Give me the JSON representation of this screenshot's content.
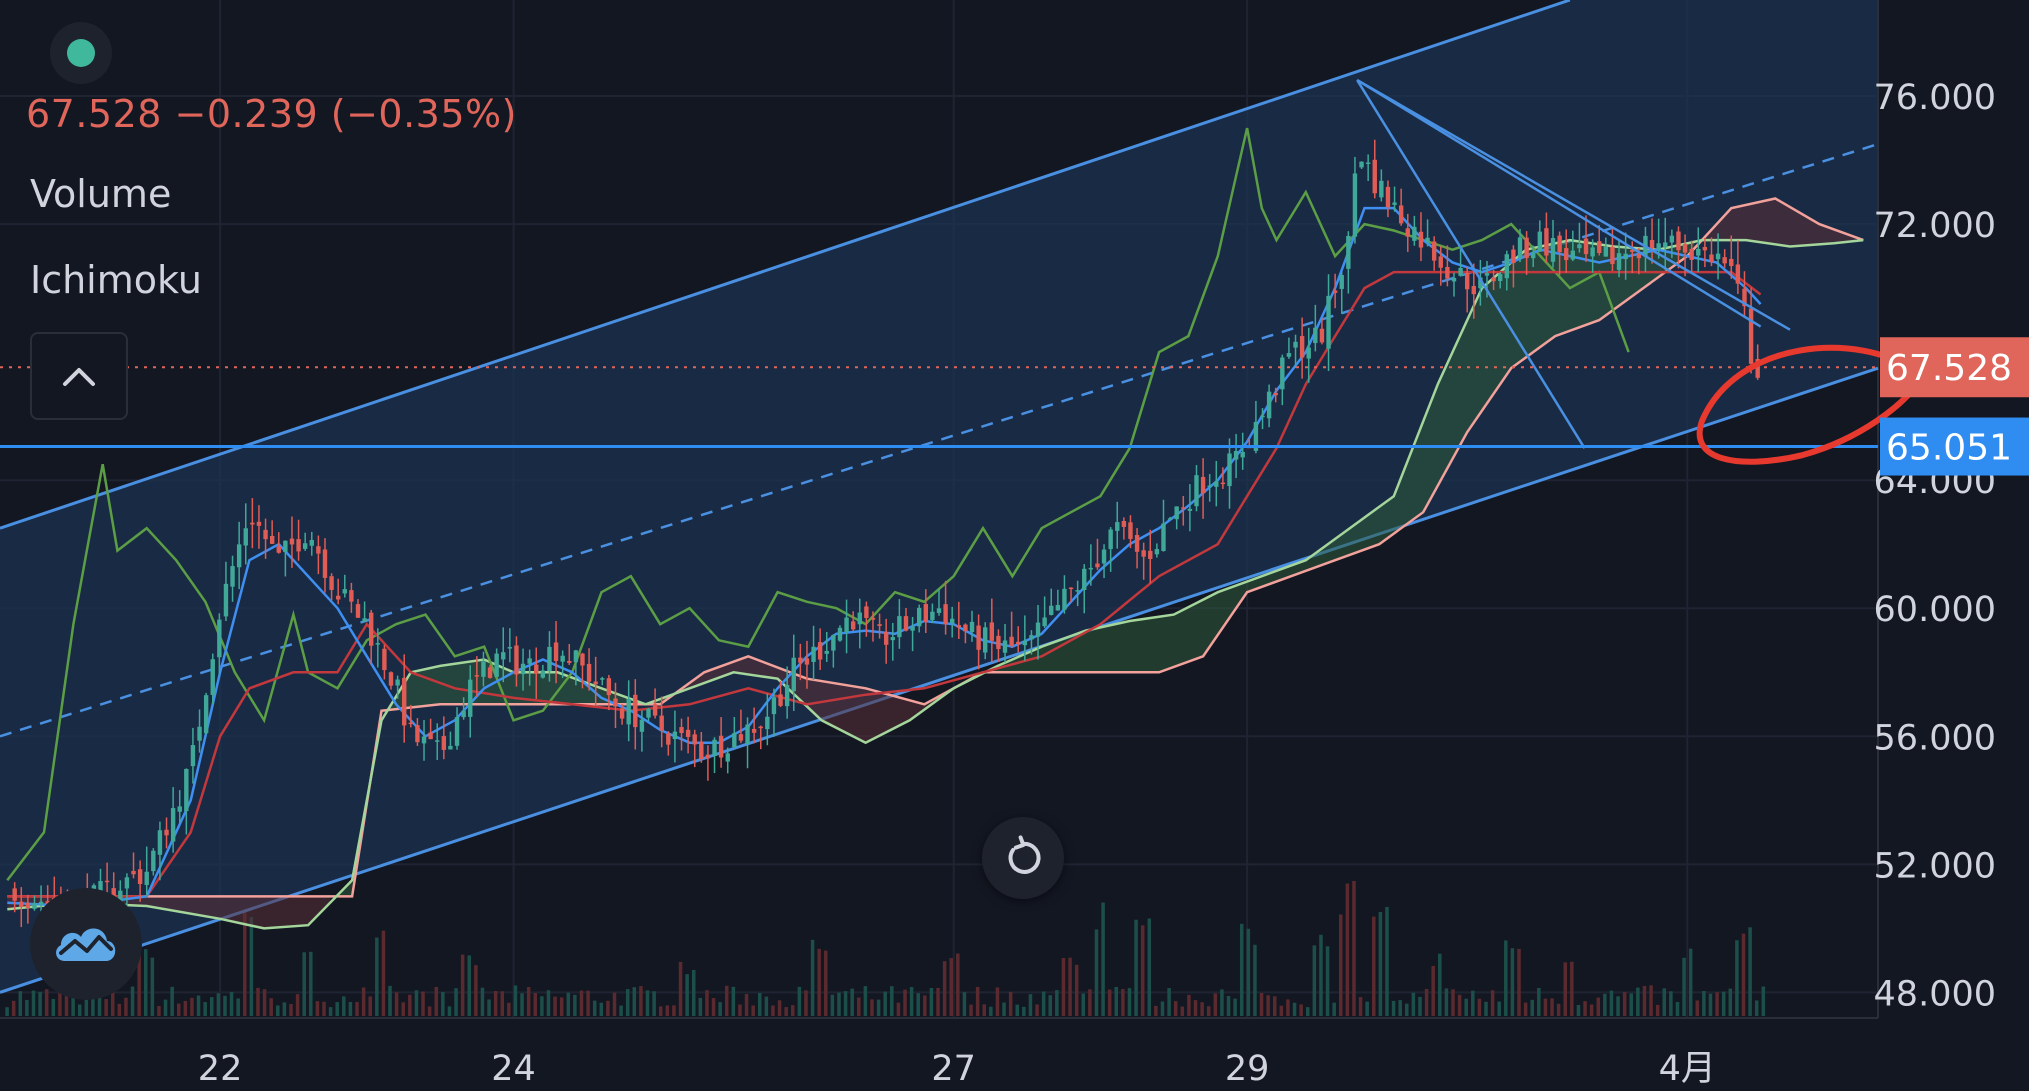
{
  "legend": {
    "price_change": "67.528  −0.239 (−0.35%)",
    "indicator_volume": "Volume",
    "indicator_ichimoku": "Ichimoku"
  },
  "icons": {
    "symbol_dot": "status-dot-icon",
    "collapse": "chevron-up-icon",
    "replay": "replay-icon",
    "logo": "tradingview-cloud-icon"
  },
  "colors": {
    "background": "#131722",
    "channel_line": "#4a90e2",
    "channel_fill": "#1c3350",
    "conversion_line": "#3f8ff2",
    "base_line": "#c2383c",
    "lagging_span": "#5c9e45",
    "leading_span_a": "#a4d69b",
    "leading_span_b": "#f2a19b",
    "candle_up": "#3fa898",
    "candle_down": "#e05c54",
    "current_price": "#e0655a",
    "level_label": "#2f8cf0",
    "annotation": "#e8392f"
  },
  "chart_data": {
    "type": "candlestick",
    "symbol_dot_present": true,
    "x_axis": {
      "ticks": [
        "22",
        "24",
        "27",
        "29",
        "4月"
      ],
      "tick_positions": [
        22,
        24,
        27,
        29,
        32
      ]
    },
    "y_axis": {
      "range": [
        47.2,
        79.0
      ],
      "ticks": [
        "76.000",
        "72.000",
        "64.000",
        "60.000",
        "56.000",
        "52.000",
        "48.000"
      ],
      "tick_values": [
        76,
        72,
        64,
        60,
        56,
        52,
        48
      ]
    },
    "x_range": [
      20.5,
      33.3
    ],
    "current_price": {
      "value": 67.528,
      "label": "67.528",
      "line_style": "dotted"
    },
    "horizontal_level": {
      "value": 65.051,
      "label": "65.051"
    },
    "price_path": [
      [
        20.55,
        51.2
      ],
      [
        21.0,
        50.6
      ],
      [
        21.5,
        51.8
      ],
      [
        21.8,
        55.0
      ],
      [
        22.0,
        60.0
      ],
      [
        22.2,
        63.0
      ],
      [
        22.4,
        61.5
      ],
      [
        22.6,
        62.5
      ],
      [
        22.8,
        60.5
      ],
      [
        23.0,
        59.5
      ],
      [
        23.2,
        57.5
      ],
      [
        23.3,
        56.0
      ],
      [
        23.5,
        55.4
      ],
      [
        23.7,
        57.5
      ],
      [
        23.9,
        58.5
      ],
      [
        24.1,
        58.2
      ],
      [
        24.3,
        58.8
      ],
      [
        24.5,
        58.0
      ],
      [
        24.7,
        57.0
      ],
      [
        24.9,
        56.5
      ],
      [
        25.1,
        56.0
      ],
      [
        25.3,
        55.5
      ],
      [
        25.5,
        56.0
      ],
      [
        25.7,
        56.5
      ],
      [
        25.9,
        58.0
      ],
      [
        26.1,
        58.8
      ],
      [
        26.3,
        59.8
      ],
      [
        26.5,
        59.0
      ],
      [
        26.7,
        59.5
      ],
      [
        26.9,
        60.0
      ],
      [
        27.1,
        59.2
      ],
      [
        27.3,
        58.8
      ],
      [
        27.5,
        58.7
      ],
      [
        27.7,
        60.0
      ],
      [
        27.9,
        61.0
      ],
      [
        28.1,
        62.5
      ],
      [
        28.3,
        61.5
      ],
      [
        28.5,
        63.0
      ],
      [
        28.7,
        64.0
      ],
      [
        28.9,
        64.5
      ],
      [
        29.1,
        66.0
      ],
      [
        29.3,
        68.0
      ],
      [
        29.5,
        68.5
      ],
      [
        29.7,
        71.5
      ],
      [
        29.75,
        74.5
      ],
      [
        29.85,
        73.5
      ],
      [
        30.0,
        72.5
      ],
      [
        30.2,
        71.5
      ],
      [
        30.4,
        70.5
      ],
      [
        30.6,
        70.0
      ],
      [
        30.8,
        71.0
      ],
      [
        31.0,
        71.5
      ],
      [
        31.2,
        71.0
      ],
      [
        31.4,
        70.8
      ],
      [
        31.6,
        71.2
      ],
      [
        31.8,
        71.5
      ],
      [
        32.0,
        71.2
      ],
      [
        32.2,
        71.0
      ],
      [
        32.3,
        70.5
      ],
      [
        32.4,
        69.0
      ],
      [
        32.45,
        67.5
      ],
      [
        32.5,
        67.528
      ]
    ],
    "lagging_span": [
      [
        20.55,
        51.5
      ],
      [
        20.8,
        53.0
      ],
      [
        21.0,
        59.5
      ],
      [
        21.1,
        62.0
      ],
      [
        21.2,
        64.5
      ],
      [
        21.3,
        61.8
      ],
      [
        21.5,
        62.5
      ],
      [
        21.7,
        61.5
      ],
      [
        21.9,
        60.2
      ],
      [
        22.1,
        58.0
      ],
      [
        22.3,
        56.5
      ],
      [
        22.5,
        59.8
      ],
      [
        22.6,
        58.0
      ],
      [
        22.8,
        57.5
      ],
      [
        23.0,
        59.0
      ],
      [
        23.2,
        59.5
      ],
      [
        23.4,
        59.8
      ],
      [
        23.6,
        58.5
      ],
      [
        23.8,
        58.8
      ],
      [
        24.0,
        56.5
      ],
      [
        24.2,
        56.8
      ],
      [
        24.4,
        58.0
      ],
      [
        24.6,
        60.5
      ],
      [
        24.8,
        61.0
      ],
      [
        25.0,
        59.5
      ],
      [
        25.2,
        60.0
      ],
      [
        25.4,
        59.0
      ],
      [
        25.6,
        58.8
      ],
      [
        25.8,
        60.5
      ],
      [
        26.0,
        60.2
      ],
      [
        26.2,
        60.0
      ],
      [
        26.4,
        59.5
      ],
      [
        26.6,
        60.5
      ],
      [
        26.8,
        60.2
      ],
      [
        27.0,
        61.0
      ],
      [
        27.2,
        62.5
      ],
      [
        27.4,
        61.0
      ],
      [
        27.6,
        62.5
      ],
      [
        27.8,
        63.0
      ],
      [
        28.0,
        63.5
      ],
      [
        28.2,
        65.0
      ],
      [
        28.4,
        68.0
      ],
      [
        28.6,
        68.5
      ],
      [
        28.8,
        71.0
      ],
      [
        28.9,
        73.0
      ],
      [
        29.0,
        75.0
      ],
      [
        29.1,
        72.5
      ],
      [
        29.2,
        71.5
      ],
      [
        29.4,
        73.0
      ],
      [
        29.6,
        71.0
      ],
      [
        29.8,
        72.0
      ],
      [
        30.0,
        71.8
      ],
      [
        30.2,
        71.5
      ],
      [
        30.4,
        71.2
      ],
      [
        30.6,
        71.5
      ],
      [
        30.8,
        72.0
      ],
      [
        31.0,
        71.0
      ],
      [
        31.2,
        70.0
      ],
      [
        31.4,
        70.5
      ],
      [
        31.6,
        68.0
      ]
    ],
    "leading_span_a": [
      [
        20.55,
        50.6
      ],
      [
        21.0,
        50.8
      ],
      [
        21.5,
        50.7
      ],
      [
        22.0,
        50.3
      ],
      [
        22.3,
        50.0
      ],
      [
        22.6,
        50.1
      ],
      [
        22.9,
        51.5
      ],
      [
        23.1,
        56.5
      ],
      [
        23.3,
        58.0
      ],
      [
        23.5,
        58.2
      ],
      [
        23.8,
        58.4
      ],
      [
        24.0,
        58.0
      ],
      [
        24.3,
        58.0
      ],
      [
        24.6,
        57.5
      ],
      [
        24.9,
        57.0
      ],
      [
        25.2,
        57.5
      ],
      [
        25.5,
        58.0
      ],
      [
        25.8,
        57.8
      ],
      [
        26.1,
        56.5
      ],
      [
        26.4,
        55.8
      ],
      [
        26.7,
        56.5
      ],
      [
        27.0,
        57.5
      ],
      [
        27.3,
        58.2
      ],
      [
        27.6,
        58.8
      ],
      [
        27.9,
        59.3
      ],
      [
        28.2,
        59.6
      ],
      [
        28.5,
        59.8
      ],
      [
        28.8,
        60.5
      ],
      [
        29.1,
        61.0
      ],
      [
        29.4,
        61.5
      ],
      [
        29.7,
        62.5
      ],
      [
        30.0,
        63.5
      ],
      [
        30.3,
        67.0
      ],
      [
        30.6,
        70.0
      ],
      [
        30.9,
        71.2
      ],
      [
        31.2,
        71.5
      ],
      [
        31.5,
        71.3
      ],
      [
        31.8,
        71.2
      ],
      [
        32.1,
        71.5
      ],
      [
        32.4,
        71.5
      ],
      [
        32.7,
        71.3
      ],
      [
        33.0,
        71.4
      ],
      [
        33.2,
        71.5
      ]
    ],
    "leading_span_b": [
      [
        20.55,
        51.0
      ],
      [
        21.0,
        51.0
      ],
      [
        21.5,
        51.0
      ],
      [
        22.0,
        51.0
      ],
      [
        22.5,
        51.0
      ],
      [
        22.9,
        51.0
      ],
      [
        23.1,
        56.8
      ],
      [
        23.5,
        57.0
      ],
      [
        24.0,
        57.0
      ],
      [
        24.5,
        57.0
      ],
      [
        25.0,
        57.0
      ],
      [
        25.3,
        58.0
      ],
      [
        25.6,
        58.5
      ],
      [
        26.0,
        57.8
      ],
      [
        26.4,
        57.5
      ],
      [
        26.8,
        57.0
      ],
      [
        27.2,
        58.0
      ],
      [
        27.6,
        58.0
      ],
      [
        28.0,
        58.0
      ],
      [
        28.4,
        58.0
      ],
      [
        28.7,
        58.5
      ],
      [
        29.0,
        60.5
      ],
      [
        29.3,
        61.0
      ],
      [
        29.6,
        61.5
      ],
      [
        29.9,
        62.0
      ],
      [
        30.2,
        63.0
      ],
      [
        30.5,
        65.5
      ],
      [
        30.8,
        67.5
      ],
      [
        31.1,
        68.5
      ],
      [
        31.4,
        69.0
      ],
      [
        31.7,
        70.0
      ],
      [
        32.0,
        71.0
      ],
      [
        32.3,
        72.5
      ],
      [
        32.6,
        72.8
      ],
      [
        32.9,
        72.0
      ],
      [
        33.2,
        71.5
      ]
    ],
    "conversion_line": [
      [
        20.55,
        50.8
      ],
      [
        21.0,
        50.7
      ],
      [
        21.5,
        51.0
      ],
      [
        21.8,
        54.0
      ],
      [
        22.0,
        58.0
      ],
      [
        22.2,
        61.5
      ],
      [
        22.4,
        62.0
      ],
      [
        22.6,
        61.0
      ],
      [
        22.8,
        60.0
      ],
      [
        23.0,
        58.5
      ],
      [
        23.2,
        57.0
      ],
      [
        23.4,
        56.0
      ],
      [
        23.6,
        56.5
      ],
      [
        23.8,
        57.5
      ],
      [
        24.0,
        58.0
      ],
      [
        24.2,
        58.4
      ],
      [
        24.4,
        58.0
      ],
      [
        24.6,
        57.2
      ],
      [
        24.8,
        56.8
      ],
      [
        25.0,
        56.2
      ],
      [
        25.2,
        55.8
      ],
      [
        25.4,
        55.8
      ],
      [
        25.6,
        56.3
      ],
      [
        25.8,
        57.5
      ],
      [
        26.0,
        58.5
      ],
      [
        26.2,
        59.2
      ],
      [
        26.4,
        59.3
      ],
      [
        26.6,
        59.2
      ],
      [
        26.8,
        59.6
      ],
      [
        27.0,
        59.5
      ],
      [
        27.2,
        59.0
      ],
      [
        27.4,
        58.8
      ],
      [
        27.6,
        59.2
      ],
      [
        27.8,
        60.2
      ],
      [
        28.0,
        61.2
      ],
      [
        28.2,
        62.0
      ],
      [
        28.4,
        62.5
      ],
      [
        28.6,
        63.2
      ],
      [
        28.8,
        64.0
      ],
      [
        29.0,
        65.2
      ],
      [
        29.2,
        66.8
      ],
      [
        29.4,
        68.0
      ],
      [
        29.6,
        70.0
      ],
      [
        29.8,
        72.5
      ],
      [
        30.0,
        72.5
      ],
      [
        30.2,
        71.5
      ],
      [
        30.4,
        70.8
      ],
      [
        30.6,
        70.5
      ],
      [
        30.8,
        70.8
      ],
      [
        31.0,
        71.2
      ],
      [
        31.2,
        71.0
      ],
      [
        31.4,
        70.8
      ],
      [
        31.6,
        71.0
      ],
      [
        31.8,
        71.2
      ],
      [
        32.0,
        71.0
      ],
      [
        32.2,
        70.8
      ],
      [
        32.4,
        70.0
      ],
      [
        32.5,
        69.5
      ]
    ],
    "base_line": [
      [
        20.55,
        51.0
      ],
      [
        21.0,
        51.0
      ],
      [
        21.5,
        51.0
      ],
      [
        21.8,
        53.0
      ],
      [
        22.0,
        56.0
      ],
      [
        22.2,
        57.5
      ],
      [
        22.5,
        58.0
      ],
      [
        22.8,
        58.0
      ],
      [
        23.0,
        59.5
      ],
      [
        23.3,
        58.0
      ],
      [
        23.6,
        57.5
      ],
      [
        24.0,
        57.2
      ],
      [
        24.4,
        57.0
      ],
      [
        24.8,
        56.8
      ],
      [
        25.2,
        57.0
      ],
      [
        25.6,
        57.5
      ],
      [
        26.0,
        57.0
      ],
      [
        26.4,
        57.3
      ],
      [
        26.8,
        57.5
      ],
      [
        27.2,
        58.0
      ],
      [
        27.6,
        58.5
      ],
      [
        28.0,
        59.5
      ],
      [
        28.4,
        61.0
      ],
      [
        28.8,
        62.0
      ],
      [
        29.0,
        63.5
      ],
      [
        29.2,
        65.0
      ],
      [
        29.4,
        67.0
      ],
      [
        29.6,
        68.5
      ],
      [
        29.8,
        70.0
      ],
      [
        30.0,
        70.5
      ],
      [
        30.4,
        70.5
      ],
      [
        30.8,
        70.5
      ],
      [
        31.2,
        70.5
      ],
      [
        31.6,
        70.5
      ],
      [
        32.0,
        70.5
      ],
      [
        32.3,
        70.5
      ],
      [
        32.5,
        69.8
      ]
    ],
    "volume_spikes": [
      [
        21.5,
        0.35
      ],
      [
        22.2,
        0.55
      ],
      [
        22.6,
        0.3
      ],
      [
        23.1,
        0.4
      ],
      [
        23.7,
        0.3
      ],
      [
        25.2,
        0.25
      ],
      [
        26.1,
        0.35
      ],
      [
        27.0,
        0.3
      ],
      [
        27.8,
        0.3
      ],
      [
        28.0,
        0.55
      ],
      [
        28.3,
        0.45
      ],
      [
        29.0,
        0.45
      ],
      [
        29.5,
        0.45
      ],
      [
        29.7,
        0.65
      ],
      [
        29.9,
        0.5
      ],
      [
        30.3,
        0.3
      ],
      [
        30.8,
        0.35
      ],
      [
        31.2,
        0.3
      ],
      [
        32.0,
        0.35
      ],
      [
        32.4,
        0.45
      ]
    ],
    "trend_channel": {
      "upper": [
        [
          20.5,
          62.5
        ],
        [
          31.2,
          79.0
        ]
      ],
      "median_dashed": [
        [
          20.5,
          56.0
        ],
        [
          33.3,
          74.5
        ]
      ],
      "lower": [
        [
          20.5,
          48.0
        ],
        [
          33.3,
          67.5
        ]
      ]
    },
    "trend_lines": [
      {
        "from": [
          29.75,
          76.5
        ],
        "to": [
          31.9,
          72.0
        ],
        "extend_to": [
          32.7,
          68.7
        ]
      },
      {
        "from": [
          29.75,
          76.5
        ],
        "to": [
          31.3,
          65.0
        ]
      },
      {
        "from": [
          29.75,
          76.5
        ],
        "to": [
          30.5,
          73.8
        ],
        "extend_to": [
          32.5,
          68.8
        ]
      }
    ],
    "annotation": {
      "type": "freehand-circle",
      "color": "red",
      "around_price": 66.5
    }
  }
}
